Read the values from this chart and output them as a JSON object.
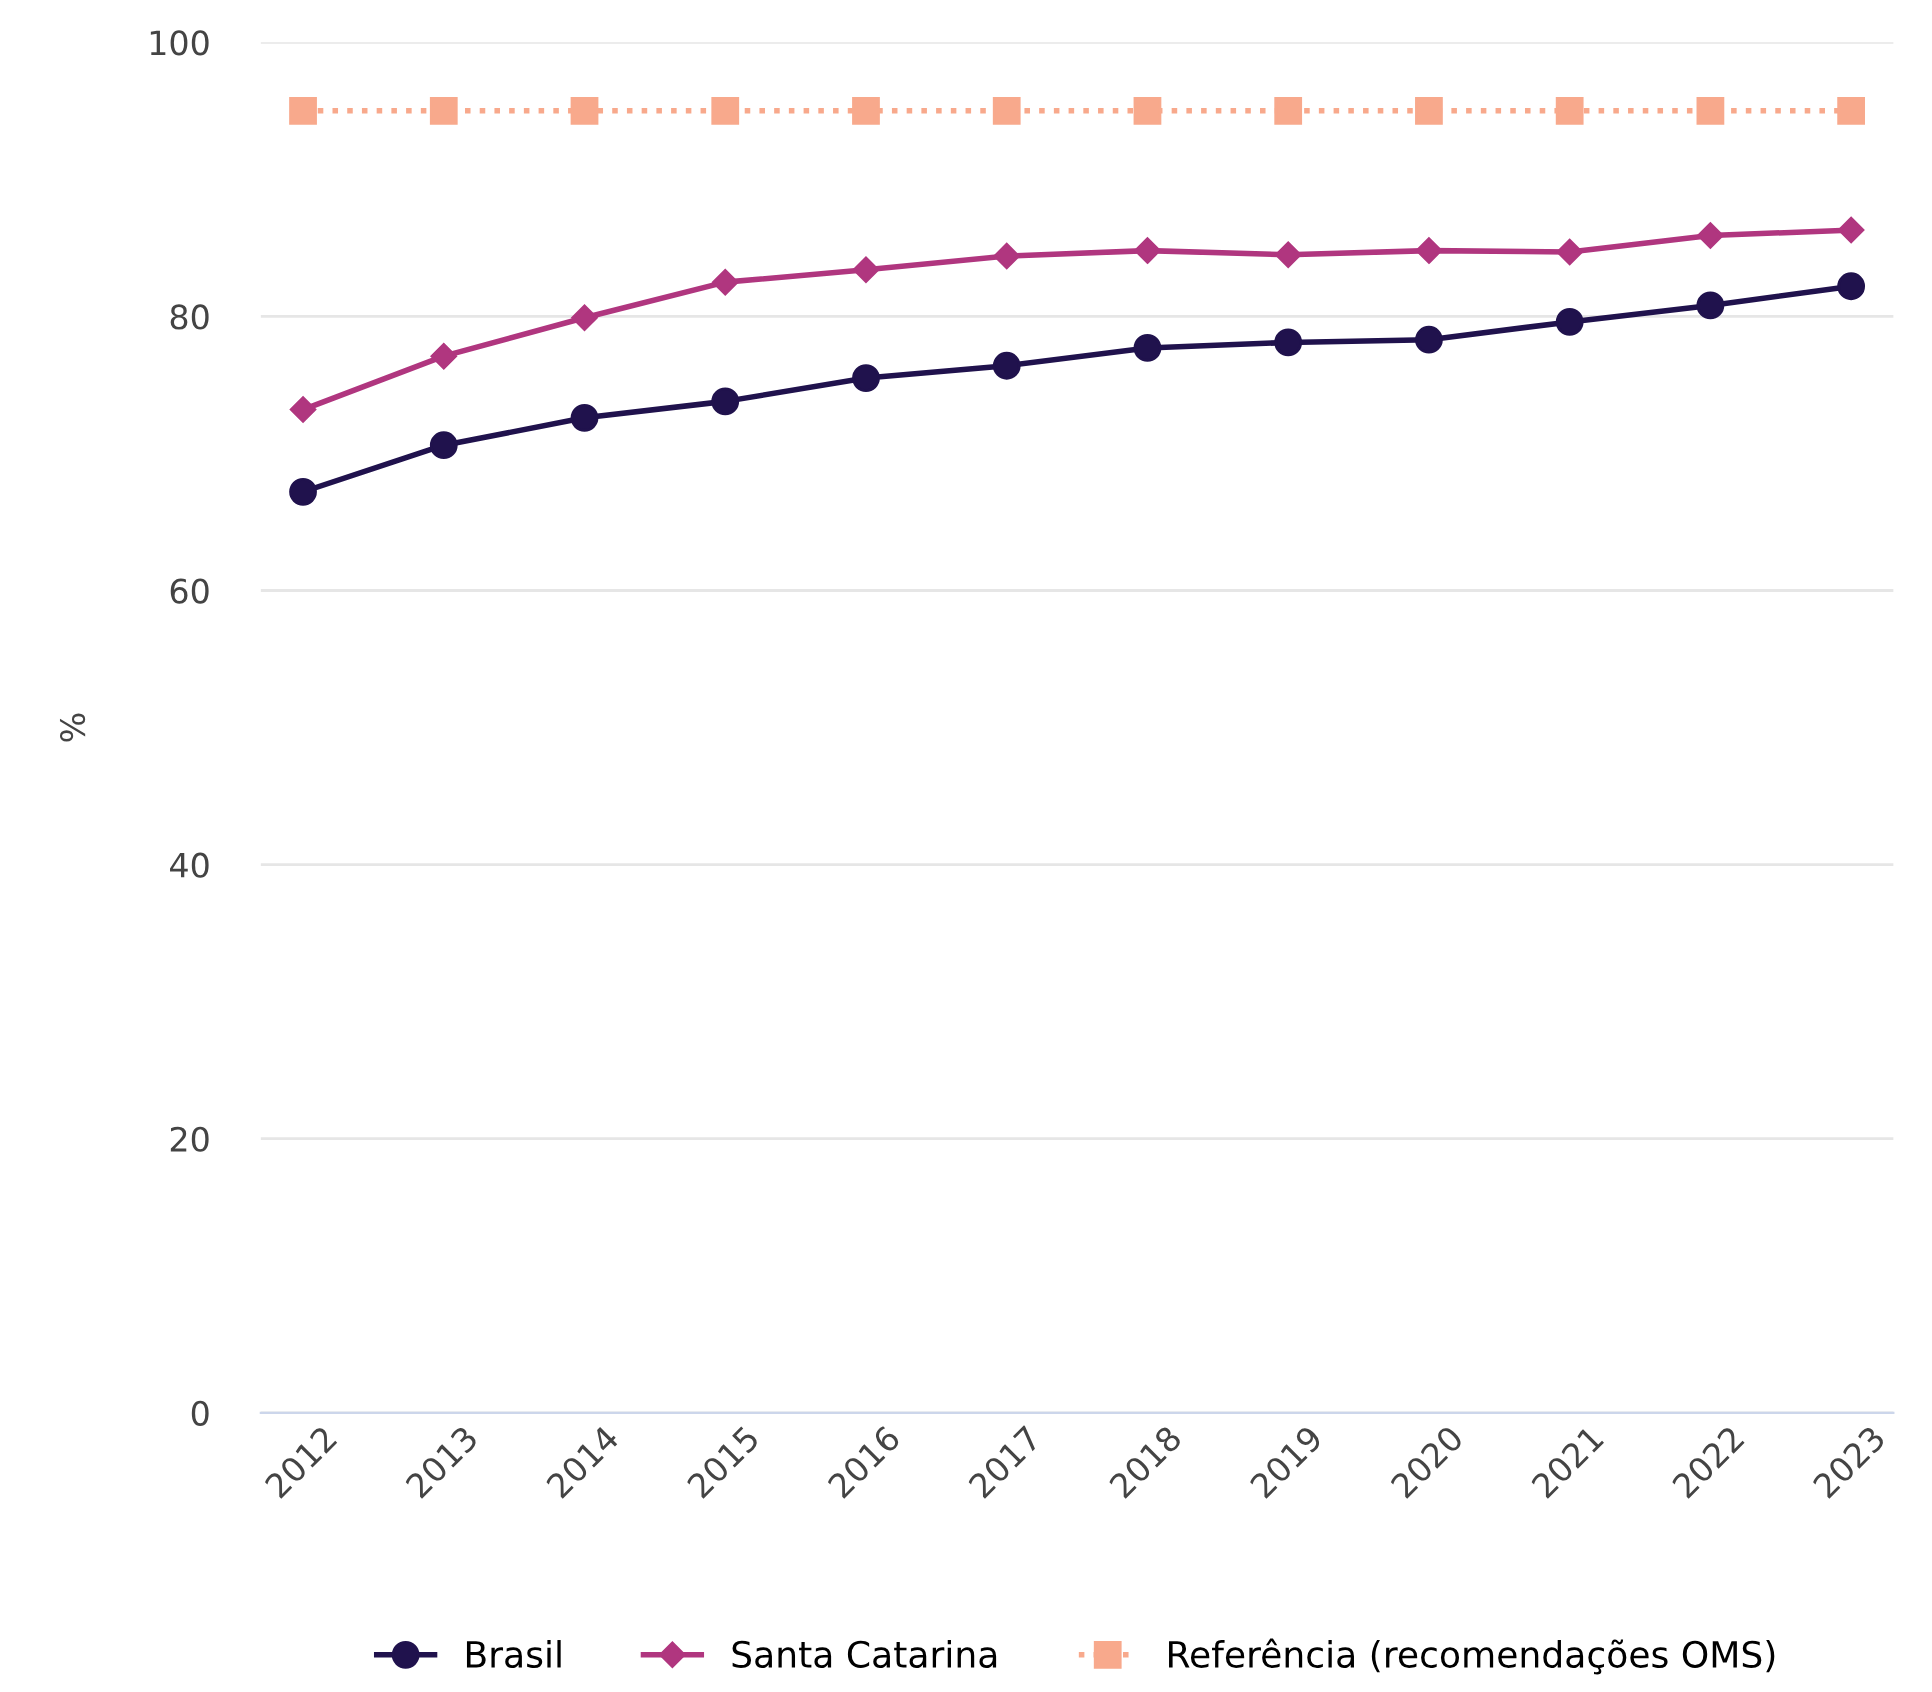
{
  "chart_data": {
    "type": "line",
    "ylabel": "%",
    "categories": [
      "2012",
      "2013",
      "2014",
      "2015",
      "2016",
      "2017",
      "2018",
      "2019",
      "2020",
      "2021",
      "2022",
      "2023"
    ],
    "series": [
      {
        "name": "Brasil",
        "color": "#20124d",
        "marker": "circle",
        "line_style": "solid",
        "values": [
          67.2,
          70.6,
          72.6,
          73.8,
          75.5,
          76.4,
          77.7,
          78.1,
          78.3,
          79.6,
          80.8,
          82.2
        ]
      },
      {
        "name": "Santa Catarina",
        "color": "#b0367f",
        "marker": "diamond",
        "line_style": "solid",
        "values": [
          73.2,
          77.1,
          79.9,
          82.5,
          83.4,
          84.4,
          84.8,
          84.5,
          84.8,
          84.7,
          85.9,
          86.3
        ]
      },
      {
        "name": "Referência (recomendações OMS)",
        "color": "#f8a98c",
        "marker": "square",
        "line_style": "dotted",
        "values": [
          95,
          95,
          95,
          95,
          95,
          95,
          95,
          95,
          95,
          95,
          95,
          95
        ]
      }
    ],
    "ylim": [
      0,
      100
    ],
    "yticks": [
      0,
      20,
      40,
      60,
      80,
      100
    ],
    "grid": "y",
    "legend": "bottom"
  }
}
